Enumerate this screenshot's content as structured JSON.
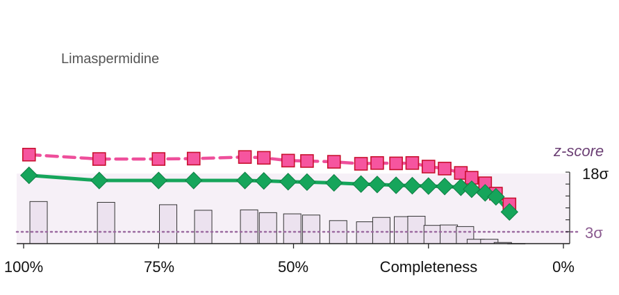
{
  "chart_data": {
    "type": "line",
    "title": "Limaspermidine",
    "xlabel": "Completeness",
    "xticks": [
      {
        "value": 100,
        "label": "100%"
      },
      {
        "value": 75,
        "label": "75%"
      },
      {
        "value": 50,
        "label": "50%"
      },
      {
        "value": 0,
        "label": "0%"
      }
    ],
    "xlim": [
      100,
      0
    ],
    "ylabel": "z-score",
    "yticks": [
      {
        "value": 18,
        "label": "18σ"
      },
      {
        "value": 3,
        "label": "3σ"
      }
    ],
    "threshold": {
      "value": 3,
      "style": "dotted",
      "color": "#9b6aa0"
    },
    "colors": {
      "series_1": "#ee4f9b",
      "series_1_fill": "#f6559f",
      "series_2": "#16a55b",
      "bars_fill": "#ece2ef",
      "bars_edge": "#333333",
      "band": "#f6f0f7"
    },
    "series": [
      {
        "marker": "square",
        "line": "dashed",
        "x": [
          99,
          86,
          75,
          68.5,
          59,
          55.5,
          51,
          47.5,
          42.5,
          37.5,
          34.5,
          31,
          28,
          25,
          22,
          19,
          17,
          14.5,
          12.5,
          10
        ],
        "y": [
          22.4,
          21.3,
          21.3,
          21.4,
          21.8,
          21.6,
          20.9,
          20.8,
          20.6,
          20.1,
          20.3,
          20.2,
          20.3,
          19.4,
          18.9,
          17.8,
          16.6,
          15.2,
          12.6,
          9.9
        ]
      },
      {
        "marker": "diamond",
        "line": "solid",
        "x": [
          99,
          86,
          75,
          68.5,
          59,
          55.5,
          51,
          47.5,
          42.5,
          37.5,
          34.5,
          31,
          28,
          25,
          22,
          19,
          17,
          14.5,
          12.5,
          10
        ],
        "y": [
          17.2,
          15.9,
          15.9,
          15.9,
          15.9,
          15.8,
          15.6,
          15.5,
          15.3,
          15.0,
          14.9,
          14.7,
          14.6,
          14.5,
          14.4,
          14.2,
          13.7,
          12.8,
          11.8,
          8.0
        ]
      }
    ],
    "bars": {
      "x": [
        98,
        85.5,
        74,
        67.5,
        59,
        55.5,
        51,
        47.5,
        42.5,
        37.5,
        34.5,
        30.5,
        28,
        25,
        22,
        19,
        17,
        14.5,
        12,
        9.5
      ],
      "y": [
        10.6,
        10.4,
        9.8,
        8.4,
        8.5,
        7.8,
        7.5,
        7.2,
        5.8,
        5.5,
        6.6,
        6.8,
        6.9,
        4.6,
        4.7,
        4.3,
        1.1,
        1.1,
        0.3,
        0.0
      ]
    }
  }
}
